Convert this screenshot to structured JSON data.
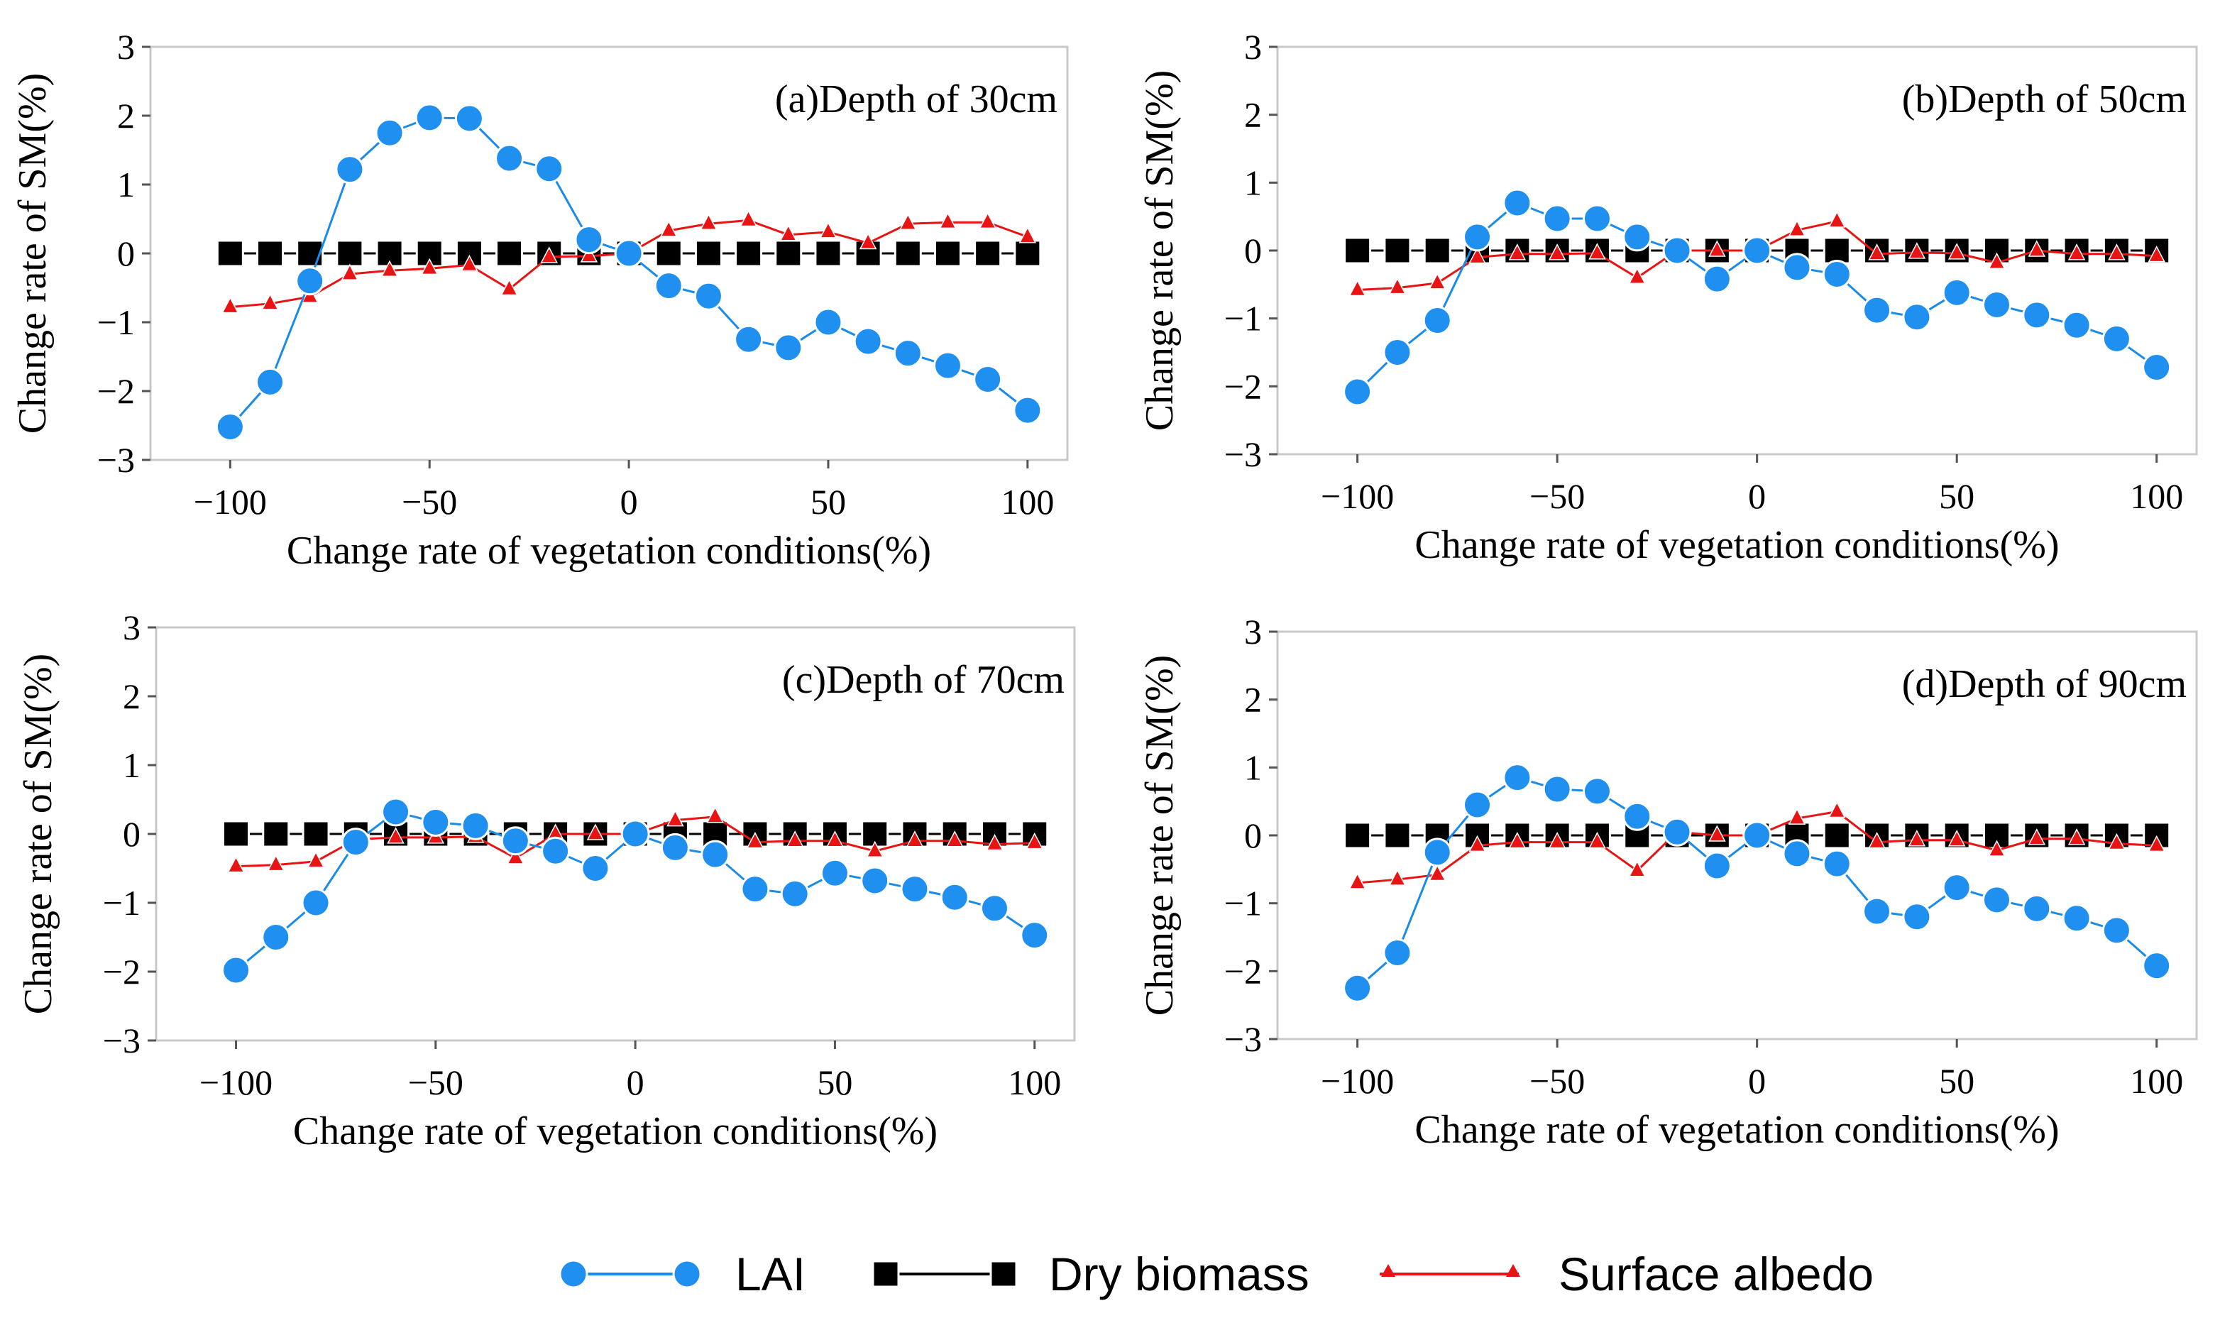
{
  "chart_data": [
    {
      "type": "line",
      "title": "(a)Depth of 30cm",
      "xlabel": "Change rate of vegetation conditions(%)",
      "ylabel": "Change rate of SM(%)",
      "xlim": [
        -120,
        110
      ],
      "ylim": [
        -3,
        3
      ],
      "xticks": [
        -100,
        -50,
        0,
        50,
        100
      ],
      "yticks": [
        3,
        2,
        1,
        0,
        -1,
        -2,
        -3
      ],
      "xtick_labels": [
        "−100",
        "−50",
        "0",
        "50",
        "100"
      ],
      "ytick_labels": [
        "3",
        "2",
        "1",
        "0",
        "−1",
        "−2",
        "−3"
      ],
      "x": [
        -100,
        -90,
        -80,
        -70,
        -60,
        -50,
        -40,
        -30,
        -20,
        -10,
        0,
        10,
        20,
        30,
        40,
        50,
        60,
        70,
        80,
        90,
        100
      ],
      "series": [
        {
          "name": "LAI",
          "values": [
            -2.52,
            -1.87,
            -0.4,
            1.22,
            1.75,
            1.97,
            1.96,
            1.38,
            1.23,
            0.2,
            0.0,
            -0.47,
            -0.62,
            -1.25,
            -1.37,
            -1.0,
            -1.28,
            -1.45,
            -1.63,
            -1.83,
            -2.28
          ]
        },
        {
          "name": "Dry biomass",
          "values": [
            0,
            0,
            0,
            0,
            0,
            0,
            0,
            0,
            0,
            0,
            0,
            0,
            0,
            0,
            0,
            0,
            0,
            0,
            0,
            0,
            0
          ]
        },
        {
          "name": "Surface albedo",
          "values": [
            -0.78,
            -0.73,
            -0.63,
            -0.3,
            -0.25,
            -0.22,
            -0.17,
            -0.52,
            -0.05,
            -0.04,
            0.0,
            0.33,
            0.43,
            0.48,
            0.27,
            0.31,
            0.15,
            0.43,
            0.45,
            0.45,
            0.24
          ]
        }
      ]
    },
    {
      "type": "line",
      "title": "(b)Depth of 50cm",
      "xlabel": "Change rate of vegetation conditions(%)",
      "ylabel": "Change rate of SM(%)",
      "xlim": [
        -120,
        110
      ],
      "ylim": [
        -3,
        3
      ],
      "xticks": [
        -100,
        -50,
        0,
        50,
        100
      ],
      "yticks": [
        3,
        2,
        1,
        0,
        -1,
        -2,
        -3
      ],
      "xtick_labels": [
        "−100",
        "−50",
        "0",
        "50",
        "100"
      ],
      "ytick_labels": [
        "3",
        "2",
        "1",
        "0",
        "−1",
        "−2",
        "−3"
      ],
      "x": [
        -100,
        -90,
        -80,
        -70,
        -60,
        -50,
        -40,
        -30,
        -20,
        -10,
        0,
        10,
        20,
        30,
        40,
        50,
        60,
        70,
        80,
        90,
        100
      ],
      "series": [
        {
          "name": "LAI",
          "values": [
            -2.08,
            -1.5,
            -1.03,
            0.2,
            0.7,
            0.47,
            0.47,
            0.2,
            0.0,
            -0.42,
            0.0,
            -0.25,
            -0.35,
            -0.88,
            -0.98,
            -0.62,
            -0.8,
            -0.95,
            -1.1,
            -1.3,
            -1.72
          ]
        },
        {
          "name": "Dry biomass",
          "values": [
            0,
            0,
            0,
            0,
            0,
            0,
            0,
            0,
            0,
            0,
            0,
            0,
            0,
            0,
            0,
            0,
            0,
            0,
            0,
            0,
            0
          ]
        },
        {
          "name": "Surface albedo",
          "values": [
            -0.58,
            -0.55,
            -0.48,
            -0.1,
            -0.05,
            -0.05,
            -0.04,
            -0.4,
            0.0,
            0.0,
            0.0,
            0.3,
            0.43,
            -0.05,
            -0.03,
            -0.04,
            -0.18,
            0.0,
            -0.05,
            -0.05,
            -0.08
          ]
        }
      ]
    },
    {
      "type": "line",
      "title": "(c)Depth of 70cm",
      "xlabel": "Change rate of vegetation conditions(%)",
      "ylabel": "Change rate of SM(%)",
      "xlim": [
        -120,
        110
      ],
      "ylim": [
        -3,
        3
      ],
      "xticks": [
        -100,
        -50,
        0,
        50,
        100
      ],
      "yticks": [
        3,
        2,
        1,
        0,
        -1,
        -2,
        -3
      ],
      "xtick_labels": [
        "−100",
        "−50",
        "0",
        "50",
        "100"
      ],
      "ytick_labels": [
        "3",
        "2",
        "1",
        "0",
        "−1",
        "−2",
        "−3"
      ],
      "x": [
        -100,
        -90,
        -80,
        -70,
        -60,
        -50,
        -40,
        -30,
        -20,
        -10,
        0,
        10,
        20,
        30,
        40,
        50,
        60,
        70,
        80,
        90,
        100
      ],
      "series": [
        {
          "name": "LAI",
          "values": [
            -1.98,
            -1.5,
            -1.0,
            -0.12,
            0.32,
            0.17,
            0.12,
            -0.1,
            -0.25,
            -0.5,
            0.0,
            -0.2,
            -0.3,
            -0.8,
            -0.87,
            -0.57,
            -0.68,
            -0.8,
            -0.92,
            -1.08,
            -1.47
          ]
        },
        {
          "name": "Dry biomass",
          "values": [
            0,
            0,
            0,
            0,
            0,
            0,
            0,
            0,
            0,
            0,
            0,
            0,
            0,
            0,
            0,
            0,
            0,
            0,
            0,
            0,
            0
          ]
        },
        {
          "name": "Surface albedo",
          "values": [
            -0.47,
            -0.45,
            -0.4,
            -0.08,
            -0.05,
            -0.05,
            -0.04,
            -0.35,
            0.0,
            0.0,
            0.0,
            0.2,
            0.25,
            -0.12,
            -0.1,
            -0.1,
            -0.25,
            -0.1,
            -0.1,
            -0.15,
            -0.13
          ]
        }
      ]
    },
    {
      "type": "line",
      "title": "(d)Depth of 90cm",
      "xlabel": "Change rate of vegetation conditions(%)",
      "ylabel": "Change rate of SM(%)",
      "xlim": [
        -120,
        110
      ],
      "ylim": [
        -3,
        3
      ],
      "xticks": [
        -100,
        -50,
        0,
        50,
        100
      ],
      "yticks": [
        3,
        2,
        1,
        0,
        -1,
        -2,
        -3
      ],
      "xtick_labels": [
        "−100",
        "−50",
        "0",
        "50",
        "100"
      ],
      "ytick_labels": [
        "3",
        "2",
        "1",
        "0",
        "−1",
        "−2",
        "−3"
      ],
      "x": [
        -100,
        -90,
        -80,
        -70,
        -60,
        -50,
        -40,
        -30,
        -20,
        -10,
        0,
        10,
        20,
        30,
        40,
        50,
        60,
        70,
        80,
        90,
        100
      ],
      "series": [
        {
          "name": "LAI",
          "values": [
            -2.25,
            -1.73,
            -0.25,
            0.45,
            0.85,
            0.68,
            0.65,
            0.28,
            0.05,
            -0.45,
            0.0,
            -0.27,
            -0.42,
            -1.12,
            -1.2,
            -0.77,
            -0.95,
            -1.08,
            -1.22,
            -1.4,
            -1.92
          ]
        },
        {
          "name": "Dry biomass",
          "values": [
            0,
            0,
            0,
            0,
            0,
            0,
            0,
            0,
            0,
            0,
            0,
            0,
            0,
            0,
            0,
            0,
            0,
            0,
            0,
            0,
            0
          ]
        },
        {
          "name": "Surface albedo",
          "values": [
            -0.7,
            -0.65,
            -0.58,
            -0.15,
            -0.1,
            -0.1,
            -0.1,
            -0.52,
            0.05,
            0.0,
            0.0,
            0.25,
            0.35,
            -0.1,
            -0.07,
            -0.07,
            -0.22,
            -0.05,
            -0.05,
            -0.12,
            -0.15
          ]
        }
      ]
    }
  ],
  "legend": {
    "items": [
      {
        "label": "LAI",
        "color": "#1f8ff0",
        "marker": "circle"
      },
      {
        "label": "Dry biomass",
        "color": "#000000",
        "marker": "square"
      },
      {
        "label": "Surface albedo",
        "color": "#e81414",
        "marker": "triangle"
      }
    ]
  },
  "colors": {
    "lai": "#1f8ff0",
    "lai_line": "#1a8be6",
    "dry_biomass": "#000000",
    "surface_albedo": "#e81414"
  }
}
